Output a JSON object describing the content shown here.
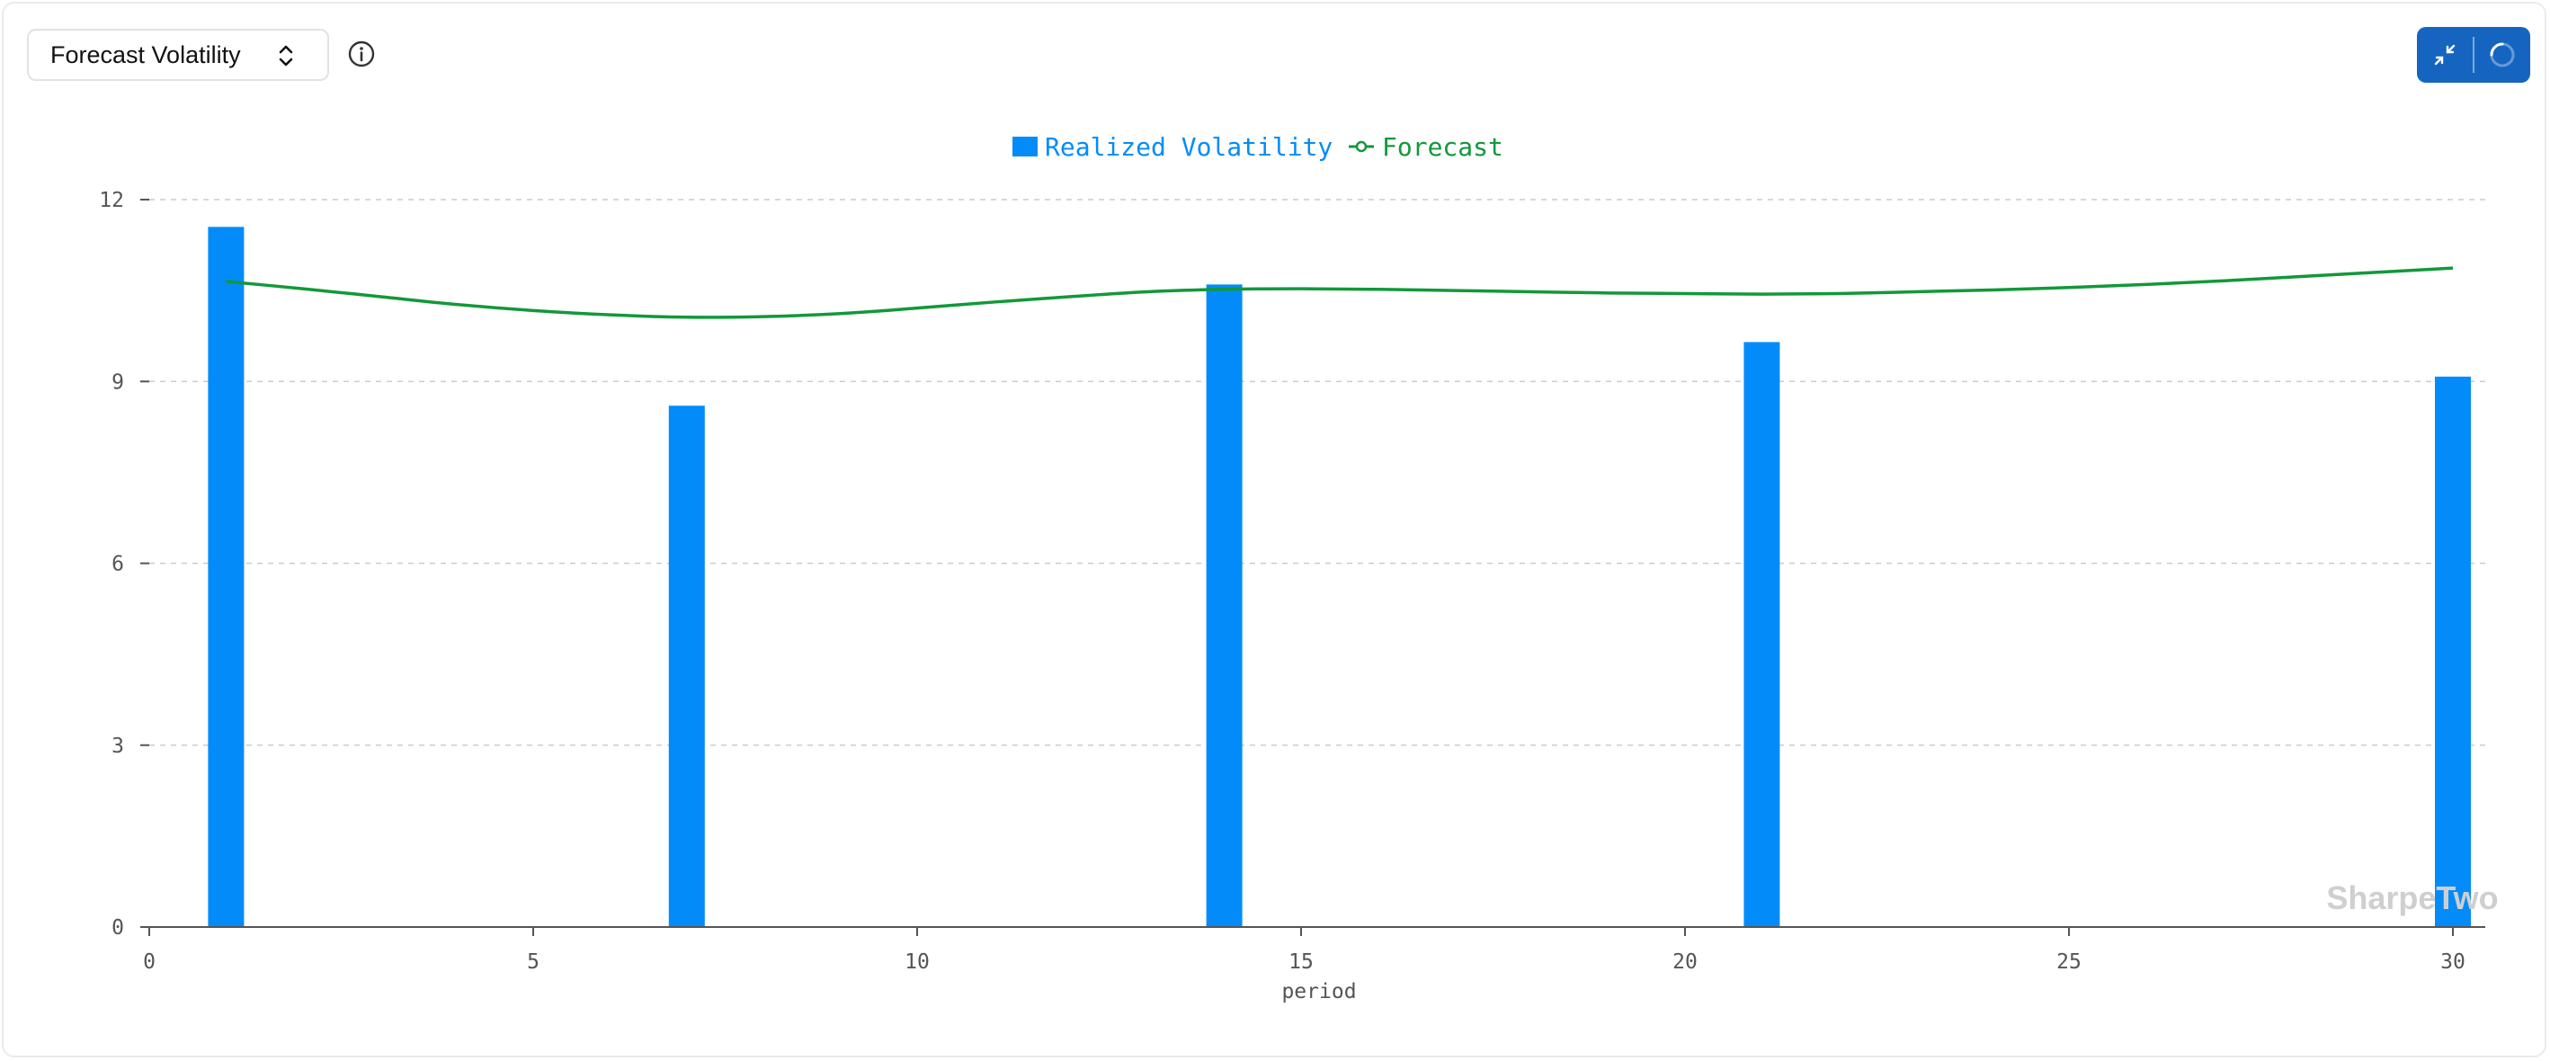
{
  "header": {
    "selector_label": "Forecast Volatility",
    "info_icon": "info-icon",
    "chevron_icon": "chevron-updown-icon"
  },
  "toolbar": {
    "collapse_icon": "collapse-icon",
    "loading_icon": "loading-spinner-icon"
  },
  "watermark": "SharpeTwo",
  "colors": {
    "bar": "#038cf9",
    "line": "#12983a",
    "toolbar": "#1565c0",
    "axis": "#555555",
    "grid": "#cccccc"
  },
  "chart_data": {
    "type": "bar",
    "xlabel": "period",
    "ylabel": "",
    "xlim": [
      0,
      30
    ],
    "ylim": [
      0,
      12
    ],
    "x_ticks": [
      0,
      5,
      10,
      15,
      20,
      25,
      30
    ],
    "y_ticks": [
      0,
      3,
      6,
      9,
      12
    ],
    "grid": "horizontal dashed",
    "legend_position": "top-center",
    "series": [
      {
        "name": "Realized Volatility",
        "type": "bar",
        "x": [
          1,
          7,
          14,
          21,
          30
        ],
        "values": [
          11.55,
          8.6,
          10.6,
          9.65,
          9.08
        ]
      },
      {
        "name": "Forecast",
        "type": "line",
        "x": [
          1,
          2,
          3,
          4,
          5,
          6,
          7,
          8,
          9,
          10,
          11,
          12,
          13,
          14,
          15,
          16,
          17,
          18,
          19,
          20,
          21,
          22,
          23,
          24,
          25,
          26,
          27,
          28,
          29,
          30
        ],
        "values": [
          10.65,
          10.53,
          10.4,
          10.27,
          10.17,
          10.1,
          10.06,
          10.07,
          10.12,
          10.21,
          10.31,
          10.4,
          10.48,
          10.52,
          10.53,
          10.52,
          10.5,
          10.48,
          10.46,
          10.45,
          10.44,
          10.45,
          10.48,
          10.51,
          10.55,
          10.6,
          10.66,
          10.73,
          10.8,
          10.87
        ]
      }
    ]
  }
}
